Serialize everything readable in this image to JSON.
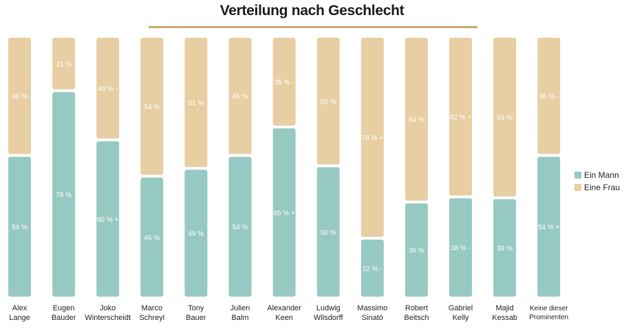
{
  "title": "Verteilung nach Geschlecht",
  "colors": {
    "mann": "#97c9c3",
    "frau": "#e7cfa3",
    "rule": "#c7a76b"
  },
  "legend": [
    {
      "label": "Ein Mann",
      "color": "#97c9c3"
    },
    {
      "label": "Eine Frau",
      "color": "#e7cfa3"
    }
  ],
  "chart_data": {
    "type": "bar",
    "stacked": true,
    "categories": [
      [
        "Alex",
        "Lange"
      ],
      [
        "Eugen",
        "Bauder"
      ],
      [
        "Joko",
        "Winterscheidt"
      ],
      [
        "Marco",
        "Schreyl"
      ],
      [
        "Tony",
        "Bauer"
      ],
      [
        "Julien",
        "Balm"
      ],
      [
        "Alexander",
        "Keen"
      ],
      [
        "Ludwig",
        "Wilsdorff"
      ],
      [
        "Massimo",
        "Sinató"
      ],
      [
        "Robert",
        "Beitsch"
      ],
      [
        "Gabriel",
        "Kelly"
      ],
      [
        "Majid",
        "Kessab"
      ],
      [
        "Keine dieser",
        "Prominenten"
      ]
    ],
    "series": [
      {
        "name": "Ein Mann",
        "values": [
          54,
          79,
          60,
          46,
          49,
          54,
          65,
          50,
          22,
          36,
          38,
          38,
          54
        ],
        "labels": [
          "54 %",
          "79 %",
          "60 % +",
          "46 %",
          "49 %",
          "54 %",
          "65 % +",
          "50 %",
          "22 % -",
          "36 %",
          "38 % -",
          "38 %",
          "54 % +"
        ]
      },
      {
        "name": "Eine Frau",
        "values": [
          46,
          21,
          40,
          54,
          51,
          46,
          35,
          50,
          78,
          64,
          62,
          63,
          46
        ],
        "labels": [
          "46 %",
          "21 %",
          "40 % -",
          "54 %",
          "51 %",
          "46 %",
          "35 % -",
          "50 %",
          "78 % +",
          "64 %",
          "62 % +",
          "63 %",
          "46 % -"
        ]
      }
    ],
    "ylim": [
      0,
      100
    ],
    "legend_position": "right"
  }
}
